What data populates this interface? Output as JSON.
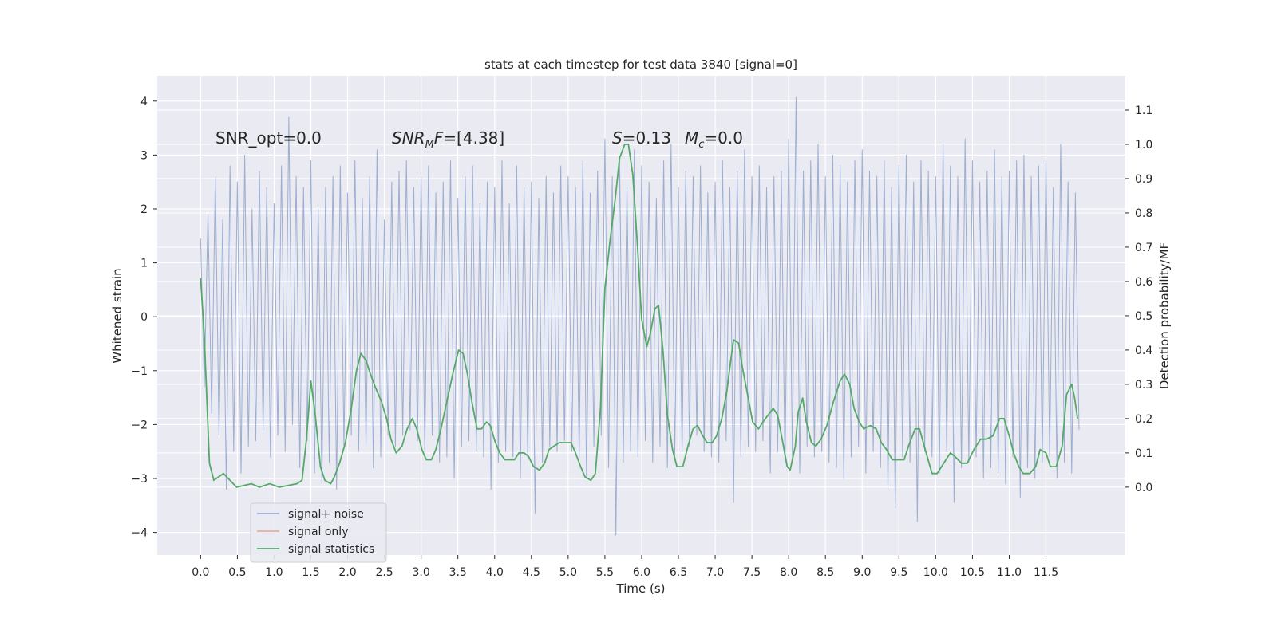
{
  "chart_data": {
    "type": "line",
    "title": "stats at each timestep for test data 3840 [signal=0]",
    "xlabel": "Time (s)",
    "ylabel": "Whitened strain",
    "y2label": "Detection probability/MF",
    "annotations": [
      [
        "SNR_opt=0.0"
      ],
      [
        "SNR",
        "M",
        "F",
        "=[4.38]"
      ],
      [
        "S",
        "=0.13"
      ],
      [
        "M",
        "c",
        "=0.0"
      ]
    ],
    "xlim": [
      -0.59,
      12.58
    ],
    "ylim": [
      -4.42,
      4.47
    ],
    "y2lim": [
      -0.198,
      1.2
    ],
    "xticks": [
      {
        "value": 0,
        "label": "0.0"
      },
      0.5,
      {
        "value": 1,
        "label": "1.0"
      },
      1.5,
      {
        "value": 2,
        "label": "2.0"
      },
      2.5,
      {
        "value": 3,
        "label": "3.0"
      },
      3.5,
      {
        "value": 4,
        "label": "4.0"
      },
      4.5,
      {
        "value": 5,
        "label": "5.0"
      },
      5.5,
      {
        "value": 6,
        "label": "6.0"
      },
      6.5,
      {
        "value": 7,
        "label": "7.0"
      },
      7.5,
      {
        "value": 8,
        "label": "8.0"
      },
      8.5,
      {
        "value": 9,
        "label": "9.0"
      },
      9.5,
      {
        "value": 10,
        "label": "10.0"
      },
      10.5,
      {
        "value": 11,
        "label": "11.0"
      },
      11.5
    ],
    "yticks": [
      {
        "value": -4,
        "label": "−4"
      },
      {
        "value": -3,
        "label": "−3"
      },
      {
        "value": -2,
        "label": "−2"
      },
      {
        "value": -1,
        "label": "−1"
      },
      0,
      1,
      2,
      3,
      4
    ],
    "y2ticks": [
      {
        "value": 0,
        "label": "0.0"
      },
      0.1,
      0.2,
      0.3,
      0.4,
      0.5,
      0.6,
      0.7,
      0.8,
      0.9,
      {
        "value": 1,
        "label": "1.0"
      },
      1.1
    ],
    "grid": true,
    "legend": "lower left",
    "series": [
      {
        "name": "signal+ noise",
        "color": "#8ea3cd",
        "x": [
          0,
          0.05,
          0.1,
          0.15,
          0.2,
          0.25,
          0.3,
          0.35,
          0.4,
          0.45,
          0.5,
          0.55,
          0.6,
          0.65,
          0.7,
          0.75,
          0.8,
          0.85,
          0.9,
          0.95,
          1,
          1.05,
          1.1,
          1.15,
          1.2,
          1.25,
          1.3,
          1.35,
          1.4,
          1.45,
          1.5,
          1.55,
          1.6,
          1.65,
          1.7,
          1.75,
          1.8,
          1.85,
          1.9,
          1.95,
          2,
          2.05,
          2.1,
          2.15,
          2.2,
          2.25,
          2.3,
          2.35,
          2.4,
          2.45,
          2.5,
          2.55,
          2.6,
          2.65,
          2.7,
          2.75,
          2.8,
          2.85,
          2.9,
          2.95,
          3,
          3.05,
          3.1,
          3.15,
          3.2,
          3.25,
          3.3,
          3.35,
          3.4,
          3.45,
          3.5,
          3.55,
          3.6,
          3.65,
          3.7,
          3.75,
          3.8,
          3.85,
          3.9,
          3.95,
          4,
          4.05,
          4.1,
          4.15,
          4.2,
          4.25,
          4.3,
          4.35,
          4.4,
          4.45,
          4.5,
          4.55,
          4.6,
          4.65,
          4.7,
          4.75,
          4.8,
          4.85,
          4.9,
          4.95,
          5,
          5.05,
          5.1,
          5.15,
          5.2,
          5.25,
          5.3,
          5.35,
          5.4,
          5.45,
          5.5,
          5.55,
          5.6,
          5.65,
          5.7,
          5.75,
          5.8,
          5.85,
          5.9,
          5.95,
          6,
          6.05,
          6.1,
          6.15,
          6.2,
          6.25,
          6.3,
          6.35,
          6.4,
          6.45,
          6.5,
          6.55,
          6.6,
          6.65,
          6.7,
          6.75,
          6.8,
          6.85,
          6.9,
          6.95,
          7,
          7.05,
          7.1,
          7.15,
          7.2,
          7.25,
          7.3,
          7.35,
          7.4,
          7.45,
          7.5,
          7.55,
          7.6,
          7.65,
          7.7,
          7.75,
          7.8,
          7.85,
          7.9,
          7.95,
          8,
          8.05,
          8.1,
          8.15,
          8.2,
          8.25,
          8.3,
          8.35,
          8.4,
          8.45,
          8.5,
          8.55,
          8.6,
          8.65,
          8.7,
          8.75,
          8.8,
          8.85,
          8.9,
          8.95,
          9,
          9.05,
          9.1,
          9.15,
          9.2,
          9.25,
          9.3,
          9.35,
          9.4,
          9.45,
          9.5,
          9.55,
          9.6,
          9.65,
          9.7,
          9.75,
          9.8,
          9.85,
          9.9,
          9.95,
          10,
          10.05,
          10.1,
          10.15,
          10.2,
          10.25,
          10.3,
          10.35,
          10.4,
          10.45,
          10.5,
          10.55,
          10.6,
          10.65,
          10.7,
          10.75,
          10.8,
          10.85,
          10.9,
          10.95,
          11,
          11.05,
          11.1,
          11.15,
          11.2,
          11.25,
          11.3,
          11.35,
          11.4,
          11.45,
          11.5,
          11.55,
          11.6,
          11.65,
          11.7,
          11.75,
          11.8,
          11.85,
          11.9,
          11.95
        ],
        "values": [
          1.45,
          -1.3,
          1.9,
          -1.8,
          2.6,
          -2.2,
          1.8,
          -3.2,
          2.8,
          -2.5,
          2.5,
          -2.9,
          3.0,
          -2.4,
          2.0,
          -2.3,
          2.7,
          -2.1,
          2.4,
          -2.6,
          2.1,
          -2.2,
          2.8,
          -2.5,
          3.7,
          -2.0,
          2.6,
          -2.8,
          2.4,
          -2.3,
          2.9,
          -2.9,
          2.0,
          -3.1,
          2.4,
          -2.7,
          2.6,
          -3.2,
          2.8,
          -2.4,
          2.3,
          -2.2,
          2.9,
          -2.5,
          2.2,
          -2.4,
          2.6,
          -2.8,
          3.1,
          -2.6,
          1.8,
          -2.2,
          2.5,
          -2.4,
          2.7,
          -2.2,
          2.9,
          -2.1,
          2.4,
          -2.3,
          2.6,
          -2.5,
          2.8,
          -2.2,
          2.3,
          -2.7,
          2.5,
          -2.6,
          2.9,
          -3.0,
          2.2,
          -2.4,
          2.6,
          -2.3,
          2.8,
          -2.5,
          2.1,
          -2.6,
          2.5,
          -3.2,
          2.4,
          -2.7,
          2.9,
          -2.5,
          2.1,
          -2.6,
          2.8,
          -3.0,
          2.4,
          -2.6,
          2.5,
          -3.65,
          2.2,
          -2.7,
          2.6,
          -2.4,
          2.3,
          -2.5,
          2.8,
          -2.3,
          2.6,
          -2.5,
          2.4,
          -2.6,
          2.9,
          -3.0,
          2.3,
          -2.4,
          2.7,
          -2.2,
          3.3,
          -2.8,
          2.6,
          -4.05,
          2.9,
          -2.7,
          2.4,
          -2.5,
          3.1,
          -2.6,
          2.8,
          -2.3,
          2.5,
          -2.7,
          2.2,
          -2.4,
          2.9,
          -2.8,
          3.2,
          -2.6,
          2.4,
          -2.5,
          2.7,
          -2.4,
          2.6,
          -2.2,
          2.8,
          -2.5,
          2.3,
          -2.6,
          2.5,
          -2.7,
          2.9,
          -2.3,
          2.4,
          -3.45,
          2.7,
          -2.6,
          3.1,
          -2.4,
          2.6,
          -2.5,
          2.8,
          -2.3,
          2.4,
          -2.9,
          2.6,
          -2.5,
          2.7,
          -2.8,
          3.3,
          -2.6,
          4.07,
          -2.9,
          2.7,
          -2.4,
          2.9,
          -2.6,
          3.2,
          -2.5,
          2.6,
          -2.7,
          3.0,
          -2.8,
          2.8,
          -3.0,
          2.5,
          -2.6,
          2.9,
          -2.4,
          3.1,
          -2.9,
          2.7,
          -2.5,
          2.6,
          -2.8,
          2.9,
          -3.2,
          2.4,
          -3.55,
          2.8,
          -2.6,
          3.0,
          -2.7,
          2.5,
          -3.8,
          2.9,
          -2.5,
          2.7,
          -2.6,
          2.6,
          -2.9,
          3.2,
          -2.5,
          2.8,
          -3.45,
          2.6,
          -2.8,
          3.3,
          -2.7,
          2.9,
          -2.6,
          2.5,
          -3.0,
          2.7,
          -2.8,
          3.1,
          -2.9,
          2.6,
          -3.1,
          2.7,
          -2.6,
          2.9,
          -3.35,
          3.0,
          -2.8,
          2.6,
          -3.0,
          2.8,
          -2.7,
          2.9,
          -2.6,
          2.4,
          -3.0,
          3.2,
          -2.7,
          2.5,
          -2.9,
          2.3,
          -2.1
        ]
      },
      {
        "name": "signal only",
        "color": "#e9a48a",
        "x": [],
        "values": []
      },
      {
        "name": "signal statistics",
        "color": "#55a868",
        "axis": "y2",
        "x": [
          0,
          0.05,
          0.12,
          0.18,
          0.31,
          0.4,
          0.49,
          0.69,
          0.8,
          0.94,
          1.07,
          1.31,
          1.38,
          1.44,
          1.5,
          1.56,
          1.63,
          1.69,
          1.77,
          1.82,
          1.89,
          1.97,
          2.05,
          2.12,
          2.18,
          2.25,
          2.31,
          2.38,
          2.46,
          2.53,
          2.59,
          2.66,
          2.74,
          2.81,
          2.88,
          2.94,
          3.01,
          3.07,
          3.14,
          3.2,
          3.27,
          3.36,
          3.43,
          3.51,
          3.57,
          3.63,
          3.69,
          3.76,
          3.82,
          3.89,
          3.94,
          4.01,
          4.07,
          4.14,
          4.2,
          4.27,
          4.33,
          4.4,
          4.46,
          4.53,
          4.61,
          4.68,
          4.74,
          4.81,
          4.88,
          4.96,
          5.04,
          5.1,
          5.17,
          5.23,
          5.31,
          5.37,
          5.44,
          5.5,
          5.57,
          5.64,
          5.7,
          5.77,
          5.82,
          5.88,
          5.95,
          6,
          6.07,
          6.12,
          6.18,
          6.23,
          6.29,
          6.35,
          6.42,
          6.48,
          6.56,
          6.63,
          6.7,
          6.76,
          6.83,
          6.89,
          6.96,
          7.02,
          7.09,
          7.16,
          7.2,
          7.25,
          7.32,
          7.37,
          7.45,
          7.51,
          7.59,
          7.65,
          7.72,
          7.79,
          7.85,
          7.92,
          7.98,
          8.02,
          8.09,
          8.13,
          8.19,
          8.24,
          8.31,
          8.37,
          8.44,
          8.52,
          8.61,
          8.7,
          8.76,
          8.83,
          8.89,
          8.96,
          9.02,
          9.11,
          9.19,
          9.26,
          9.33,
          9.41,
          9.48,
          9.57,
          9.63,
          9.72,
          9.78,
          9.87,
          9.95,
          10.02,
          10.11,
          10.2,
          10.26,
          10.35,
          10.43,
          10.52,
          10.61,
          10.69,
          10.78,
          10.87,
          10.93,
          11,
          11.06,
          11.13,
          11.19,
          11.28,
          11.36,
          11.42,
          11.5,
          11.56,
          11.64,
          11.72,
          11.78,
          11.85,
          11.89,
          11.93
        ],
        "values": [
          0.61,
          0.44,
          0.07,
          0.02,
          0.04,
          0.02,
          0,
          0.01,
          0,
          0.01,
          0,
          0.01,
          0.02,
          0.14,
          0.31,
          0.21,
          0.06,
          0.02,
          0.01,
          0.03,
          0.07,
          0.13,
          0.23,
          0.34,
          0.39,
          0.37,
          0.33,
          0.29,
          0.25,
          0.2,
          0.14,
          0.1,
          0.12,
          0.17,
          0.2,
          0.17,
          0.11,
          0.08,
          0.08,
          0.11,
          0.17,
          0.26,
          0.33,
          0.4,
          0.39,
          0.33,
          0.25,
          0.17,
          0.17,
          0.19,
          0.18,
          0.13,
          0.1,
          0.08,
          0.08,
          0.08,
          0.1,
          0.1,
          0.09,
          0.06,
          0.05,
          0.07,
          0.11,
          0.12,
          0.13,
          0.13,
          0.13,
          0.1,
          0.06,
          0.03,
          0.02,
          0.04,
          0.23,
          0.58,
          0.72,
          0.84,
          0.96,
          1,
          1,
          0.91,
          0.68,
          0.49,
          0.41,
          0.45,
          0.52,
          0.53,
          0.4,
          0.21,
          0.11,
          0.06,
          0.06,
          0.12,
          0.17,
          0.18,
          0.15,
          0.13,
          0.13,
          0.15,
          0.2,
          0.28,
          0.35,
          0.43,
          0.42,
          0.35,
          0.26,
          0.19,
          0.17,
          0.19,
          0.21,
          0.23,
          0.21,
          0.13,
          0.06,
          0.05,
          0.12,
          0.22,
          0.26,
          0.19,
          0.13,
          0.12,
          0.14,
          0.18,
          0.25,
          0.31,
          0.33,
          0.3,
          0.23,
          0.19,
          0.17,
          0.18,
          0.17,
          0.13,
          0.11,
          0.08,
          0.08,
          0.08,
          0.12,
          0.17,
          0.17,
          0.1,
          0.04,
          0.04,
          0.07,
          0.1,
          0.09,
          0.07,
          0.07,
          0.11,
          0.14,
          0.14,
          0.15,
          0.2,
          0.2,
          0.15,
          0.1,
          0.06,
          0.04,
          0.04,
          0.06,
          0.11,
          0.1,
          0.06,
          0.06,
          0.12,
          0.27,
          0.3,
          0.26,
          0.2
        ]
      }
    ]
  }
}
